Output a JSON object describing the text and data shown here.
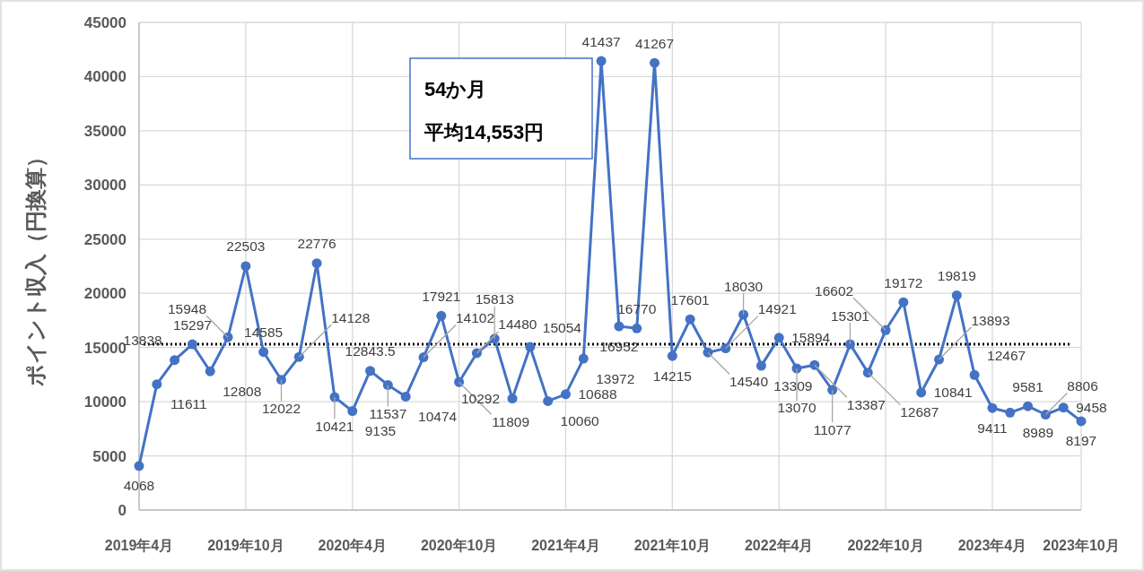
{
  "chart_data": {
    "type": "line",
    "ylabel": "ポイント収入（円換算）",
    "categories": [
      "2019年4月",
      null,
      null,
      null,
      null,
      null,
      "2019年10月",
      null,
      null,
      null,
      null,
      null,
      "2020年4月",
      null,
      null,
      null,
      null,
      null,
      "2020年10月",
      null,
      null,
      null,
      null,
      null,
      "2021年4月",
      null,
      null,
      null,
      null,
      null,
      "2021年10月",
      null,
      null,
      null,
      null,
      null,
      "2022年4月",
      null,
      null,
      null,
      null,
      null,
      "2022年10月",
      null,
      null,
      null,
      null,
      null,
      "2023年4月",
      null,
      null,
      null,
      null,
      "2023年10月"
    ],
    "series": [
      {
        "color": "#4472c4",
        "values": [
          4068,
          11611,
          13838,
          15297,
          12808,
          15948,
          22503,
          14585,
          12022,
          14128,
          22776,
          10421,
          9135,
          12843.5,
          11537,
          10474,
          14102,
          17921,
          11809,
          14480,
          15813,
          10292,
          15054,
          10060,
          10688,
          13972,
          41437,
          16952,
          16770,
          41267,
          14215,
          17601,
          14540,
          14921,
          18030,
          13309,
          15894,
          13070,
          13387,
          11077,
          15301,
          12687,
          16602,
          19172,
          10841,
          13893,
          19819,
          12467,
          9411,
          8989,
          9581,
          8806,
          9458,
          8197
        ]
      }
    ],
    "ylim": [
      0,
      45000
    ],
    "yticks": [
      0,
      5000,
      10000,
      15000,
      20000,
      25000,
      30000,
      35000,
      40000,
      45000
    ],
    "grid": true,
    "marker": "circle",
    "data_labels": true,
    "ref_lines": [
      {
        "axis": "y",
        "value": 15300,
        "color": "#000000",
        "line_style": "dotted"
      }
    ],
    "annotations": [
      "54か月",
      "平均14,553円"
    ]
  }
}
